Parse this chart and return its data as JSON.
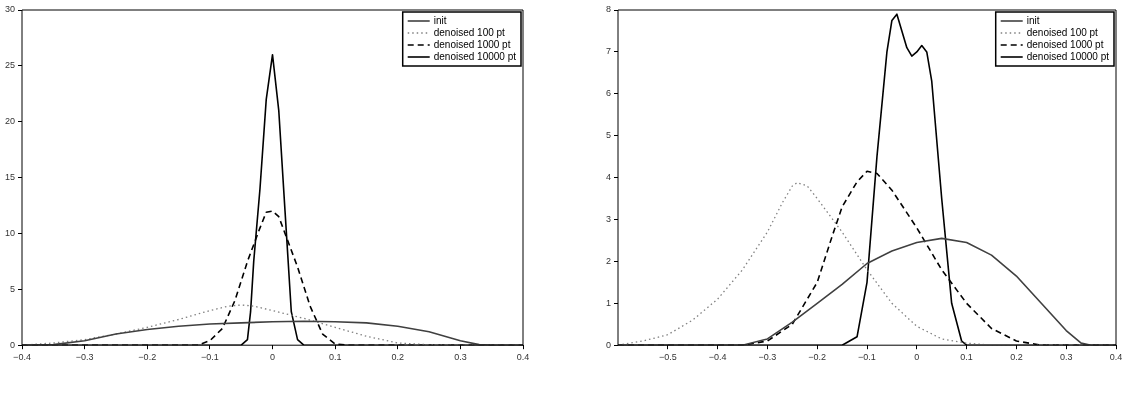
{
  "chart_data": [
    {
      "type": "line",
      "xlim": [
        -0.4,
        0.4
      ],
      "xticks": [
        -0.4,
        -0.3,
        -0.2,
        -0.1,
        0,
        0.1,
        0.2,
        0.3,
        0.4
      ],
      "ylim": [
        0,
        30
      ],
      "yticks": [
        0,
        5,
        10,
        15,
        20,
        25,
        30
      ],
      "grid": false,
      "legend": "top right",
      "marker": "none",
      "series": [
        {
          "name": "init",
          "color": "#404040",
          "line_style": "solid",
          "x": [
            -0.4,
            -0.35,
            -0.3,
            -0.25,
            -0.2,
            -0.15,
            -0.1,
            -0.05,
            0,
            0.05,
            0.1,
            0.15,
            0.2,
            0.25,
            0.3,
            0.33,
            0.35,
            0.4
          ],
          "values": [
            0,
            0.05,
            0.4,
            1.0,
            1.4,
            1.7,
            1.9,
            2.0,
            2.1,
            2.15,
            2.1,
            2.0,
            1.7,
            1.2,
            0.4,
            0.05,
            0,
            0
          ]
        },
        {
          "name": "denoised 100 pt",
          "color": "#808080",
          "line_style": "dotted",
          "x": [
            -0.4,
            -0.35,
            -0.3,
            -0.25,
            -0.2,
            -0.15,
            -0.1,
            -0.07,
            -0.05,
            -0.03,
            0,
            0.05,
            0.1,
            0.15,
            0.2,
            0.25,
            0.3,
            0.4
          ],
          "values": [
            0,
            0.2,
            0.5,
            1.0,
            1.6,
            2.3,
            3.1,
            3.5,
            3.6,
            3.5,
            3.1,
            2.4,
            1.6,
            0.8,
            0.2,
            0.05,
            0,
            0
          ]
        },
        {
          "name": "denoised 1000 pt",
          "color": "#000000",
          "line_style": "dashed",
          "x": [
            -0.4,
            -0.12,
            -0.1,
            -0.08,
            -0.06,
            -0.04,
            -0.02,
            -0.01,
            0,
            0.01,
            0.02,
            0.04,
            0.06,
            0.08,
            0.1,
            0.12,
            0.4
          ],
          "values": [
            0,
            0,
            0.4,
            1.5,
            4,
            7.5,
            10.5,
            11.9,
            12,
            11.5,
            10,
            7,
            3.5,
            1,
            0.1,
            0,
            0
          ]
        },
        {
          "name": "denoised 10000 pt",
          "color": "#000000",
          "line_style": "solid",
          "x": [
            -0.4,
            -0.05,
            -0.04,
            -0.035,
            -0.03,
            -0.02,
            -0.01,
            0,
            0.01,
            0.02,
            0.03,
            0.04,
            0.05,
            0.4
          ],
          "values": [
            0,
            0,
            0.5,
            3,
            7.5,
            14,
            22,
            26,
            21,
            12,
            3,
            0.5,
            0,
            0
          ]
        }
      ]
    },
    {
      "type": "line",
      "xlim": [
        -0.6,
        0.4
      ],
      "xticks": [
        -0.5,
        -0.4,
        -0.3,
        -0.2,
        -0.1,
        0,
        0.1,
        0.2,
        0.3,
        0.4
      ],
      "ylim": [
        0,
        8
      ],
      "yticks": [
        0,
        1,
        2,
        3,
        4,
        5,
        6,
        7,
        8
      ],
      "grid": false,
      "legend": "top right",
      "marker": "none",
      "series": [
        {
          "name": "init",
          "color": "#404040",
          "line_style": "solid",
          "x": [
            -0.6,
            -0.35,
            -0.3,
            -0.25,
            -0.2,
            -0.15,
            -0.1,
            -0.05,
            0,
            0.05,
            0.1,
            0.15,
            0.2,
            0.25,
            0.3,
            0.33,
            0.35,
            0.4
          ],
          "values": [
            0,
            0,
            0.15,
            0.55,
            1.0,
            1.45,
            1.95,
            2.25,
            2.45,
            2.55,
            2.45,
            2.15,
            1.65,
            1.0,
            0.35,
            0.05,
            0,
            0
          ]
        },
        {
          "name": "denoised 100 pt",
          "color": "#808080",
          "line_style": "dotted",
          "x": [
            -0.6,
            -0.55,
            -0.5,
            -0.45,
            -0.4,
            -0.35,
            -0.3,
            -0.27,
            -0.25,
            -0.24,
            -0.22,
            -0.2,
            -0.15,
            -0.1,
            -0.05,
            0,
            0.05,
            0.1,
            0.15,
            0.4
          ],
          "values": [
            0,
            0.1,
            0.25,
            0.6,
            1.1,
            1.8,
            2.7,
            3.4,
            3.8,
            3.88,
            3.8,
            3.5,
            2.7,
            1.8,
            1.0,
            0.45,
            0.15,
            0.05,
            0,
            0
          ]
        },
        {
          "name": "denoised 1000 pt",
          "color": "#000000",
          "line_style": "dashed",
          "x": [
            -0.6,
            -0.35,
            -0.3,
            -0.25,
            -0.2,
            -0.17,
            -0.15,
            -0.12,
            -0.1,
            -0.08,
            -0.05,
            0,
            0.05,
            0.1,
            0.15,
            0.2,
            0.25,
            0.4
          ],
          "values": [
            0,
            0,
            0.1,
            0.5,
            1.5,
            2.6,
            3.3,
            3.9,
            4.15,
            4.1,
            3.7,
            2.8,
            1.8,
            1.0,
            0.4,
            0.1,
            0,
            0
          ]
        },
        {
          "name": "denoised 10000 pt",
          "color": "#000000",
          "line_style": "solid",
          "x": [
            -0.6,
            -0.15,
            -0.12,
            -0.1,
            -0.08,
            -0.06,
            -0.05,
            -0.04,
            -0.03,
            -0.02,
            -0.01,
            0,
            0.01,
            0.02,
            0.03,
            0.05,
            0.07,
            0.09,
            0.1,
            0.4
          ],
          "values": [
            0,
            0,
            0.2,
            1.5,
            4.5,
            7.0,
            7.75,
            7.9,
            7.5,
            7.1,
            6.9,
            7.0,
            7.15,
            7.0,
            6.3,
            3.5,
            1.0,
            0.1,
            0,
            0
          ]
        }
      ]
    }
  ]
}
